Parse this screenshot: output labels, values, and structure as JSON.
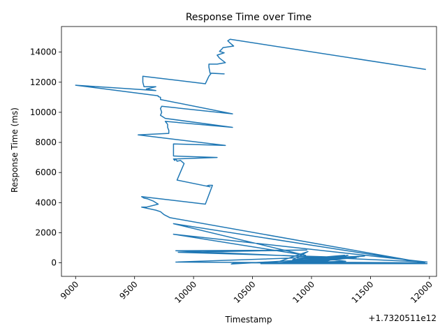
{
  "chart_data": {
    "type": "line",
    "title": "Response Time over Time",
    "xlabel": "Timestamp",
    "ylabel": "Response Time (ms)",
    "x_offset_label": "+1.7320511e12",
    "xlim": [
      8880,
      12060
    ],
    "ylim": [
      -900,
      15700
    ],
    "x_ticks": [
      9000,
      9500,
      10000,
      10500,
      11000,
      11500,
      12000
    ],
    "x_tick_labels": [
      "9000",
      "9500",
      "10000",
      "10500",
      "11000",
      "11500",
      "12000"
    ],
    "y_ticks": [
      0,
      2000,
      4000,
      6000,
      8000,
      10000,
      12000,
      14000
    ],
    "y_tick_labels": [
      "0",
      "2000",
      "4000",
      "6000",
      "8000",
      "10000",
      "12000",
      "14000"
    ],
    "grid": false,
    "series": [
      {
        "color": "#1f77b4",
        "x": [
          11970,
          10310,
          10290,
          10310,
          10340,
          10250,
          10240,
          10220,
          10260,
          10220,
          10200,
          10220,
          10270,
          10200,
          10130,
          10130,
          10140,
          10260,
          10150,
          10130,
          10100,
          9570,
          9570,
          9580,
          9680,
          9600,
          9680,
          9000,
          9700,
          9700,
          9720,
          9720,
          10330,
          9730,
          9720,
          9730,
          9720,
          9760,
          10330,
          9760,
          9780,
          9780,
          9790,
          9790,
          9530,
          10270,
          9830,
          9830,
          10200,
          9830,
          9840,
          9850,
          9860,
          9890,
          9920,
          9860,
          10140,
          10110,
          10130,
          10160,
          10100,
          9560,
          9580,
          9610,
          9660,
          9700,
          9600,
          9560,
          9680,
          9720,
          9750,
          9800,
          11960,
          9830,
          10950,
          9830,
          11980,
          9850,
          10960,
          9870,
          11130,
          9850,
          11980,
          10570,
          10730,
          10970,
          10840,
          11280,
          10900,
          11380,
          11050,
          11240,
          10880,
          11450,
          11000,
          11120,
          10820,
          11290,
          11190,
          10860,
          11960,
          10350,
          10320,
          11400,
          10870,
          10700,
          10960,
          10880,
          11120,
          11310,
          10950
        ],
        "y": [
          12850,
          14850,
          14750,
          14600,
          14400,
          14300,
          14200,
          14050,
          13950,
          13850,
          13800,
          13600,
          13300,
          13200,
          13200,
          13000,
          12600,
          12550,
          12600,
          12400,
          11900,
          12400,
          12000,
          11700,
          11700,
          11550,
          11450,
          11800,
          11100,
          11050,
          11000,
          10850,
          9900,
          10400,
          10250,
          10000,
          9800,
          9600,
          9000,
          9400,
          9200,
          9000,
          8800,
          8600,
          8500,
          7800,
          7900,
          7100,
          7000,
          6900,
          6800,
          6900,
          6750,
          6800,
          6600,
          5500,
          5050,
          5100,
          5150,
          5150,
          3900,
          4400,
          4300,
          4250,
          4100,
          3900,
          3700,
          3700,
          3500,
          3400,
          3200,
          3000,
          0,
          2600,
          500,
          1900,
          50,
          800,
          850,
          700,
          400,
          50,
          -50,
          -50,
          100,
          750,
          200,
          500,
          0,
          350,
          100,
          450,
          250,
          450,
          150,
          350,
          0,
          100,
          200,
          50,
          0,
          0,
          -80,
          400,
          100,
          0,
          0,
          -50,
          100,
          500,
          0
        ]
      }
    ]
  }
}
